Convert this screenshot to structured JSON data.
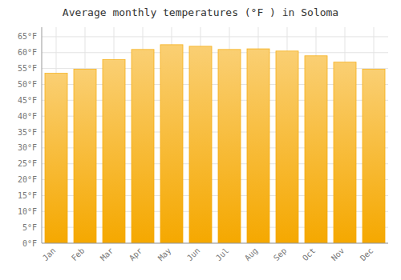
{
  "chart_data": {
    "type": "bar",
    "title": "Average monthly temperatures (°F ) in Soloma",
    "categories": [
      "Jan",
      "Feb",
      "Mar",
      "Apr",
      "May",
      "Jun",
      "Jul",
      "Aug",
      "Sep",
      "Oct",
      "Nov",
      "Dec"
    ],
    "values": [
      53.5,
      54.8,
      57.8,
      61.0,
      62.5,
      62.0,
      61.0,
      61.2,
      60.5,
      59.0,
      57.0,
      54.8
    ],
    "color": "#F5A800",
    "ylim": [
      0,
      68
    ],
    "yticks": [
      {
        "value": 0,
        "label": "0°F"
      },
      {
        "value": 5,
        "label": "5°F"
      },
      {
        "value": 10,
        "label": "10°F"
      },
      {
        "value": 15,
        "label": "15°F"
      },
      {
        "value": 20,
        "label": "20°F"
      },
      {
        "value": 25,
        "label": "25°F"
      },
      {
        "value": 30,
        "label": "30°F"
      },
      {
        "value": 35,
        "label": "35°F"
      },
      {
        "value": 40,
        "label": "40°F"
      },
      {
        "value": 45,
        "label": "45°F"
      },
      {
        "value": 50,
        "label": "50°F"
      },
      {
        "value": 55,
        "label": "55°F"
      },
      {
        "value": 60,
        "label": "60°F"
      },
      {
        "value": 65,
        "label": "65°F"
      }
    ],
    "grid": true
  }
}
